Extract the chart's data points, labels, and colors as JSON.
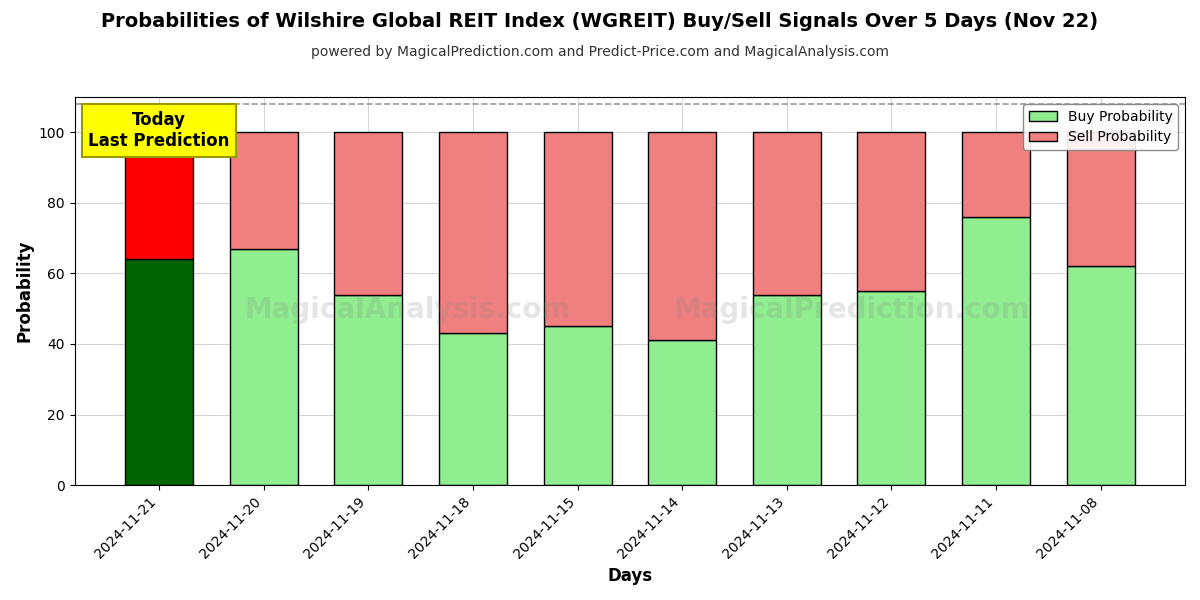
{
  "title": "Probabilities of Wilshire Global REIT Index (WGREIT) Buy/Sell Signals Over 5 Days (Nov 22)",
  "subtitle": "powered by MagicalPrediction.com and Predict-Price.com and MagicalAnalysis.com",
  "xlabel": "Days",
  "ylabel": "Probability",
  "categories": [
    "2024-11-21",
    "2024-11-20",
    "2024-11-19",
    "2024-11-18",
    "2024-11-15",
    "2024-11-14",
    "2024-11-13",
    "2024-11-12",
    "2024-11-11",
    "2024-11-08"
  ],
  "buy_values": [
    64,
    67,
    54,
    43,
    45,
    41,
    54,
    55,
    76,
    62
  ],
  "sell_values": [
    36,
    33,
    46,
    57,
    55,
    59,
    46,
    45,
    24,
    38
  ],
  "today_buy_color": "#006400",
  "today_sell_color": "#ff0000",
  "other_buy_color": "#90ee90",
  "other_sell_color": "#f08080",
  "bar_edgecolor": "#000000",
  "bar_linewidth": 1.0,
  "ylim": [
    0,
    110
  ],
  "yticks": [
    0,
    20,
    40,
    60,
    80,
    100
  ],
  "dashed_line_y": 108,
  "annotation_text": "Today\nLast Prediction",
  "annotation_color": "#ffff00",
  "watermark_line1": "MagicalAnalysis.com",
  "watermark_line2": "MagicalPrediction.com",
  "background_color": "#ffffff",
  "grid_color": "#aaaaaa",
  "title_fontsize": 14,
  "subtitle_fontsize": 10,
  "axis_label_fontsize": 12,
  "tick_fontsize": 10,
  "bar_width": 0.65
}
